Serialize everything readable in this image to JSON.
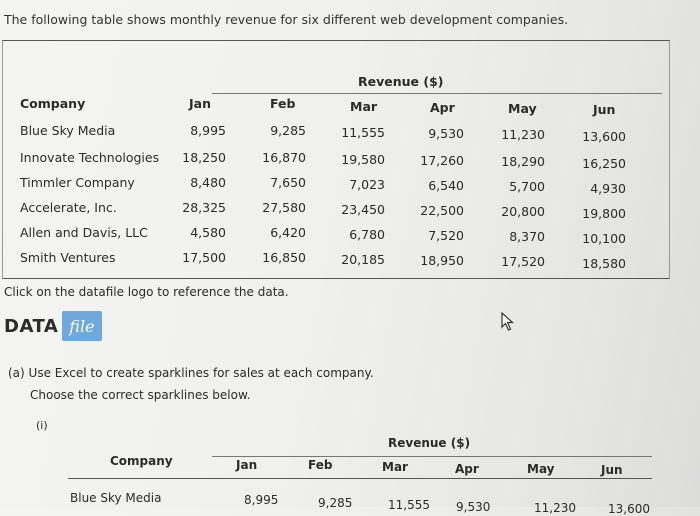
{
  "intro_text": "The following table shows monthly revenue for six different web development companies.",
  "table": {
    "group_header": "Revenue ($)",
    "company_header": "Company",
    "months": [
      "Jan",
      "Feb",
      "Mar",
      "Apr",
      "May",
      "Jun"
    ],
    "rows": [
      {
        "company": "Blue Sky Media",
        "values": [
          "8,995",
          "9,285",
          "11,555",
          "9,530",
          "11,230",
          "13,600"
        ]
      },
      {
        "company": "Innovate Technologies",
        "values": [
          "18,250",
          "16,870",
          "19,580",
          "17,260",
          "18,290",
          "16,250"
        ]
      },
      {
        "company": "Timmler Company",
        "values": [
          "8,480",
          "7,650",
          "7,023",
          "6,540",
          "5,700",
          "4,930"
        ]
      },
      {
        "company": "Accelerate, Inc.",
        "values": [
          "28,325",
          "27,580",
          "23,450",
          "22,500",
          "20,800",
          "19,800"
        ]
      },
      {
        "company": "Allen and Davis, LLC",
        "values": [
          "4,580",
          "6,420",
          "6,780",
          "7,520",
          "8,370",
          "10,100"
        ]
      },
      {
        "company": "Smith Ventures",
        "values": [
          "17,500",
          "16,850",
          "20,185",
          "18,950",
          "17,520",
          "18,580"
        ]
      }
    ]
  },
  "click_note": "Click on the datafile logo to reference the data.",
  "datafile_logo": {
    "part1": "DATA",
    "part2": "file",
    "color": "#6fa8dc"
  },
  "question_a": "(a) Use Excel to create sparklines for sales at each company.",
  "question_a_sub": "Choose the correct sparklines below.",
  "option_i": "(i)",
  "table2": {
    "group_header": "Revenue ($)",
    "company_header": "Company",
    "months": [
      "Jan",
      "Feb",
      "Mar",
      "Apr",
      "May",
      "Jun"
    ],
    "rows": [
      {
        "company": "Blue Sky Media",
        "values": [
          "8,995",
          "9,285",
          "11,555",
          "9,530",
          "11,230",
          "13,600"
        ]
      }
    ]
  }
}
